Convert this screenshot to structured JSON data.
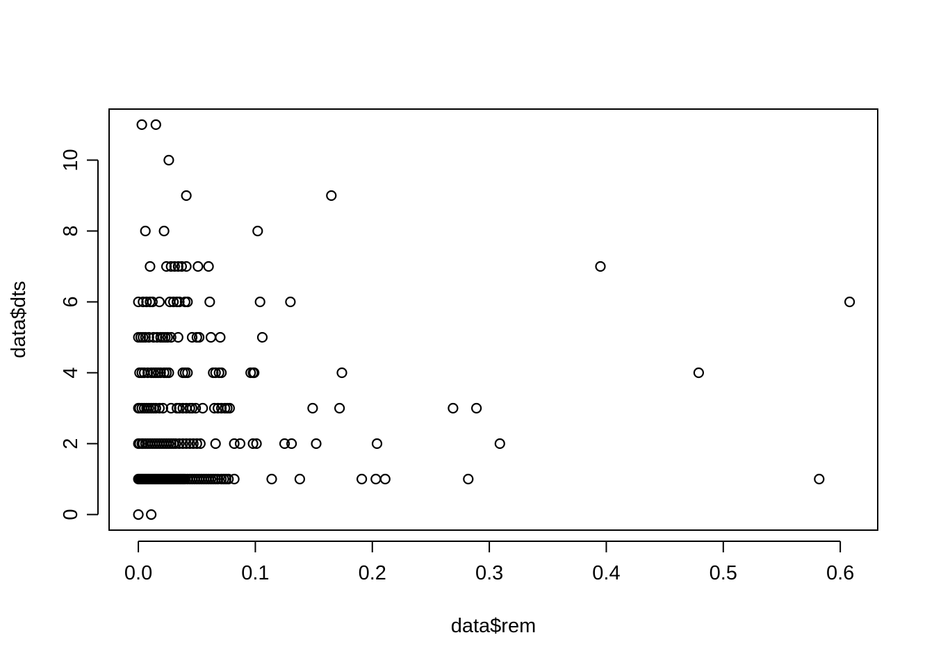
{
  "chart_data": {
    "type": "scatter",
    "title": "",
    "xlabel": "data$rem",
    "ylabel": "data$dts",
    "xlim": [
      -0.025,
      0.632
    ],
    "ylim": [
      -0.44,
      11.44
    ],
    "x_ticks": [
      0.0,
      0.1,
      0.2,
      0.3,
      0.4,
      0.5,
      0.6
    ],
    "x_tick_labels": [
      "0.0",
      "0.1",
      "0.2",
      "0.3",
      "0.4",
      "0.5",
      "0.6"
    ],
    "y_ticks": [
      0,
      2,
      4,
      6,
      8,
      10
    ],
    "y_tick_labels": [
      "0",
      "2",
      "4",
      "6",
      "8",
      "10"
    ],
    "grid": false,
    "marker": "open-circle",
    "colors": {
      "points": "#000000",
      "axes": "#000000",
      "background": "#ffffff"
    },
    "points": [
      [
        0.003,
        11
      ],
      [
        0.015,
        11
      ],
      [
        0.026,
        10
      ],
      [
        0.041,
        9
      ],
      [
        0.165,
        9
      ],
      [
        0.006,
        8
      ],
      [
        0.022,
        8
      ],
      [
        0.102,
        8
      ],
      [
        0.01,
        7
      ],
      [
        0.024,
        7
      ],
      [
        0.028,
        7
      ],
      [
        0.031,
        7
      ],
      [
        0.034,
        7
      ],
      [
        0.037,
        7
      ],
      [
        0.041,
        7
      ],
      [
        0.051,
        7
      ],
      [
        0.06,
        7
      ],
      [
        0.395,
        7
      ],
      [
        0.0,
        6
      ],
      [
        0.004,
        6
      ],
      [
        0.007,
        6
      ],
      [
        0.01,
        6
      ],
      [
        0.012,
        6
      ],
      [
        0.018,
        6
      ],
      [
        0.027,
        6
      ],
      [
        0.03,
        6
      ],
      [
        0.033,
        6
      ],
      [
        0.035,
        6
      ],
      [
        0.04,
        6
      ],
      [
        0.042,
        6
      ],
      [
        0.061,
        6
      ],
      [
        0.104,
        6
      ],
      [
        0.13,
        6
      ],
      [
        0.608,
        6
      ],
      [
        0.0,
        5
      ],
      [
        0.002,
        5
      ],
      [
        0.004,
        5
      ],
      [
        0.006,
        5
      ],
      [
        0.009,
        5
      ],
      [
        0.013,
        5
      ],
      [
        0.016,
        5
      ],
      [
        0.019,
        5
      ],
      [
        0.021,
        5
      ],
      [
        0.023,
        5
      ],
      [
        0.025,
        5
      ],
      [
        0.028,
        5
      ],
      [
        0.034,
        5
      ],
      [
        0.046,
        5
      ],
      [
        0.05,
        5
      ],
      [
        0.052,
        5
      ],
      [
        0.062,
        5
      ],
      [
        0.07,
        5
      ],
      [
        0.106,
        5
      ],
      [
        0.001,
        4
      ],
      [
        0.003,
        4
      ],
      [
        0.005,
        4
      ],
      [
        0.008,
        4
      ],
      [
        0.011,
        4
      ],
      [
        0.013,
        4
      ],
      [
        0.015,
        4
      ],
      [
        0.017,
        4
      ],
      [
        0.019,
        4
      ],
      [
        0.022,
        4
      ],
      [
        0.024,
        4
      ],
      [
        0.026,
        4
      ],
      [
        0.038,
        4
      ],
      [
        0.04,
        4
      ],
      [
        0.042,
        4
      ],
      [
        0.064,
        4
      ],
      [
        0.066,
        4
      ],
      [
        0.069,
        4
      ],
      [
        0.071,
        4
      ],
      [
        0.096,
        4
      ],
      [
        0.098,
        4
      ],
      [
        0.099,
        4
      ],
      [
        0.174,
        4
      ],
      [
        0.479,
        4
      ],
      [
        0.0,
        3
      ],
      [
        0.001,
        3
      ],
      [
        0.003,
        3
      ],
      [
        0.005,
        3
      ],
      [
        0.007,
        3
      ],
      [
        0.009,
        3
      ],
      [
        0.011,
        3
      ],
      [
        0.013,
        3
      ],
      [
        0.015,
        3
      ],
      [
        0.018,
        3
      ],
      [
        0.021,
        3
      ],
      [
        0.028,
        3
      ],
      [
        0.033,
        3
      ],
      [
        0.035,
        3
      ],
      [
        0.038,
        3
      ],
      [
        0.041,
        3
      ],
      [
        0.044,
        3
      ],
      [
        0.046,
        3
      ],
      [
        0.049,
        3
      ],
      [
        0.055,
        3
      ],
      [
        0.065,
        3
      ],
      [
        0.068,
        3
      ],
      [
        0.071,
        3
      ],
      [
        0.074,
        3
      ],
      [
        0.076,
        3
      ],
      [
        0.078,
        3
      ],
      [
        0.149,
        3
      ],
      [
        0.172,
        3
      ],
      [
        0.269,
        3
      ],
      [
        0.289,
        3
      ],
      [
        0.0,
        2
      ],
      [
        0.001,
        2
      ],
      [
        0.003,
        2
      ],
      [
        0.004,
        2
      ],
      [
        0.006,
        2
      ],
      [
        0.008,
        2
      ],
      [
        0.01,
        2
      ],
      [
        0.012,
        2
      ],
      [
        0.014,
        2
      ],
      [
        0.016,
        2
      ],
      [
        0.018,
        2
      ],
      [
        0.02,
        2
      ],
      [
        0.022,
        2
      ],
      [
        0.024,
        2
      ],
      [
        0.026,
        2
      ],
      [
        0.028,
        2
      ],
      [
        0.03,
        2
      ],
      [
        0.032,
        2
      ],
      [
        0.035,
        2
      ],
      [
        0.038,
        2
      ],
      [
        0.041,
        2
      ],
      [
        0.044,
        2
      ],
      [
        0.047,
        2
      ],
      [
        0.05,
        2
      ],
      [
        0.053,
        2
      ],
      [
        0.066,
        2
      ],
      [
        0.082,
        2
      ],
      [
        0.087,
        2
      ],
      [
        0.098,
        2
      ],
      [
        0.101,
        2
      ],
      [
        0.125,
        2
      ],
      [
        0.131,
        2
      ],
      [
        0.152,
        2
      ],
      [
        0.204,
        2
      ],
      [
        0.309,
        2
      ],
      [
        0.0,
        1
      ],
      [
        0.001,
        1
      ],
      [
        0.002,
        1
      ],
      [
        0.003,
        1
      ],
      [
        0.004,
        1
      ],
      [
        0.005,
        1
      ],
      [
        0.006,
        1
      ],
      [
        0.007,
        1
      ],
      [
        0.008,
        1
      ],
      [
        0.009,
        1
      ],
      [
        0.01,
        1
      ],
      [
        0.011,
        1
      ],
      [
        0.012,
        1
      ],
      [
        0.013,
        1
      ],
      [
        0.014,
        1
      ],
      [
        0.015,
        1
      ],
      [
        0.016,
        1
      ],
      [
        0.017,
        1
      ],
      [
        0.018,
        1
      ],
      [
        0.019,
        1
      ],
      [
        0.02,
        1
      ],
      [
        0.021,
        1
      ],
      [
        0.022,
        1
      ],
      [
        0.023,
        1
      ],
      [
        0.024,
        1
      ],
      [
        0.025,
        1
      ],
      [
        0.026,
        1
      ],
      [
        0.027,
        1
      ],
      [
        0.028,
        1
      ],
      [
        0.029,
        1
      ],
      [
        0.03,
        1
      ],
      [
        0.031,
        1
      ],
      [
        0.032,
        1
      ],
      [
        0.033,
        1
      ],
      [
        0.034,
        1
      ],
      [
        0.035,
        1
      ],
      [
        0.036,
        1
      ],
      [
        0.037,
        1
      ],
      [
        0.038,
        1
      ],
      [
        0.039,
        1
      ],
      [
        0.04,
        1
      ],
      [
        0.042,
        1
      ],
      [
        0.044,
        1
      ],
      [
        0.046,
        1
      ],
      [
        0.048,
        1
      ],
      [
        0.05,
        1
      ],
      [
        0.052,
        1
      ],
      [
        0.054,
        1
      ],
      [
        0.056,
        1
      ],
      [
        0.058,
        1
      ],
      [
        0.06,
        1
      ],
      [
        0.062,
        1
      ],
      [
        0.064,
        1
      ],
      [
        0.066,
        1
      ],
      [
        0.068,
        1
      ],
      [
        0.071,
        1
      ],
      [
        0.073,
        1
      ],
      [
        0.075,
        1
      ],
      [
        0.077,
        1
      ],
      [
        0.082,
        1
      ],
      [
        0.114,
        1
      ],
      [
        0.138,
        1
      ],
      [
        0.191,
        1
      ],
      [
        0.203,
        1
      ],
      [
        0.211,
        1
      ],
      [
        0.282,
        1
      ],
      [
        0.582,
        1
      ],
      [
        0.0,
        0
      ],
      [
        0.011,
        0
      ]
    ]
  }
}
